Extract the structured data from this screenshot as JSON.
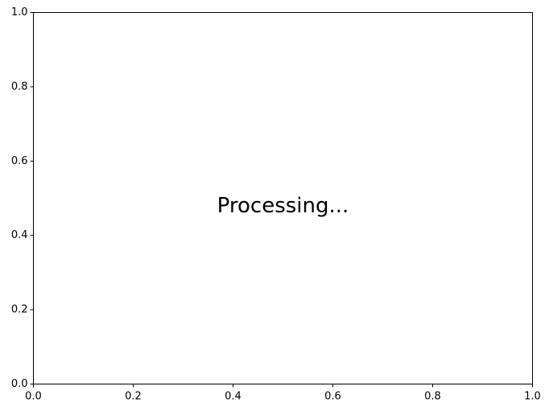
{
  "chart_data": {
    "type": "scatter",
    "title": "",
    "xlabel": "",
    "ylabel": "",
    "xlim": [
      0,
      1
    ],
    "ylim": [
      0,
      1
    ],
    "x_ticks": [
      "0.0",
      "0.2",
      "0.4",
      "0.6",
      "0.8",
      "1.0"
    ],
    "y_ticks": [
      "0.0",
      "0.2",
      "0.4",
      "0.6",
      "0.8",
      "1.0"
    ],
    "grid": false,
    "series": [],
    "annotation": {
      "text": "Processing...",
      "x": 0.5,
      "y": 0.5
    }
  },
  "colors": {
    "axis": "#000000",
    "background": "#ffffff"
  }
}
